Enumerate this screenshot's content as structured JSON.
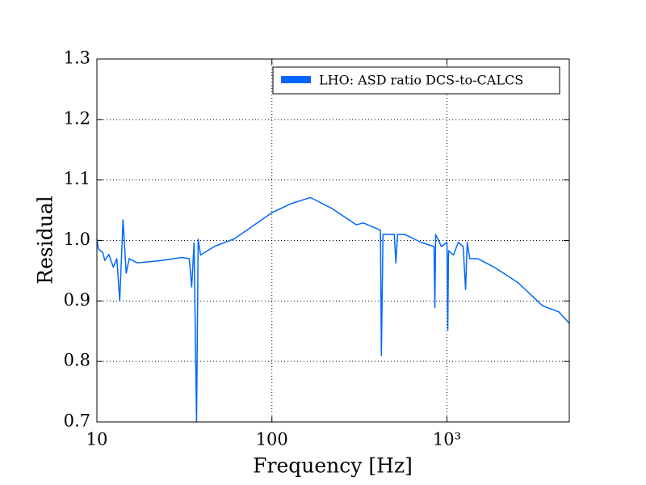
{
  "chart_data": {
    "type": "line",
    "xlabel": "Frequency [Hz]",
    "ylabel": "Residual",
    "xscale": "log",
    "xlim": [
      10,
      5000
    ],
    "ylim": [
      0.7,
      1.3
    ],
    "xticks": [
      10,
      100,
      {
        "value": 1000,
        "label": "10³"
      }
    ],
    "yticks": [
      0.7,
      0.8,
      0.9,
      {
        "value": 1,
        "label": "1.0"
      },
      1.1,
      1.2,
      1.3
    ],
    "grid": true,
    "legend": "upper right",
    "series": [
      {
        "name": "LHO: ASD ratio DCS-to-CALCS",
        "color": "#0066ff",
        "x": [
          10,
          10.2,
          10.8,
          11.1,
          11.7,
          12.4,
          13.0,
          13.5,
          14.1,
          14.7,
          15.3,
          17.0,
          23.5,
          30.6,
          33.7,
          34.8,
          35.9,
          37.1,
          37.9,
          39.1,
          46.9,
          61.2,
          100,
          129,
          166,
          220,
          303,
          333,
          417,
          422,
          431,
          500,
          511,
          522,
          574,
          711,
          843,
          853,
          862,
          929,
          1000,
          1011,
          1021,
          1089,
          1161,
          1239,
          1277,
          1306,
          1349,
          1500,
          1857,
          2553,
          3517,
          4355,
          5000
        ],
        "values": [
          1.003,
          0.986,
          0.98,
          0.967,
          0.977,
          0.956,
          0.97,
          0.9,
          1.034,
          0.946,
          0.97,
          0.963,
          0.967,
          0.972,
          0.97,
          0.923,
          0.996,
          0.7,
          1.002,
          0.976,
          0.99,
          1.003,
          1.046,
          1.061,
          1.071,
          1.053,
          1.026,
          1.029,
          1.017,
          0.81,
          1.01,
          1.01,
          0.963,
          1.01,
          1.01,
          0.997,
          0.99,
          0.889,
          1.01,
          0.99,
          0.997,
          0.852,
          0.983,
          0.976,
          0.997,
          0.99,
          0.919,
          0.997,
          0.97,
          0.97,
          0.956,
          0.93,
          0.892,
          0.882,
          0.863
        ]
      }
    ]
  }
}
